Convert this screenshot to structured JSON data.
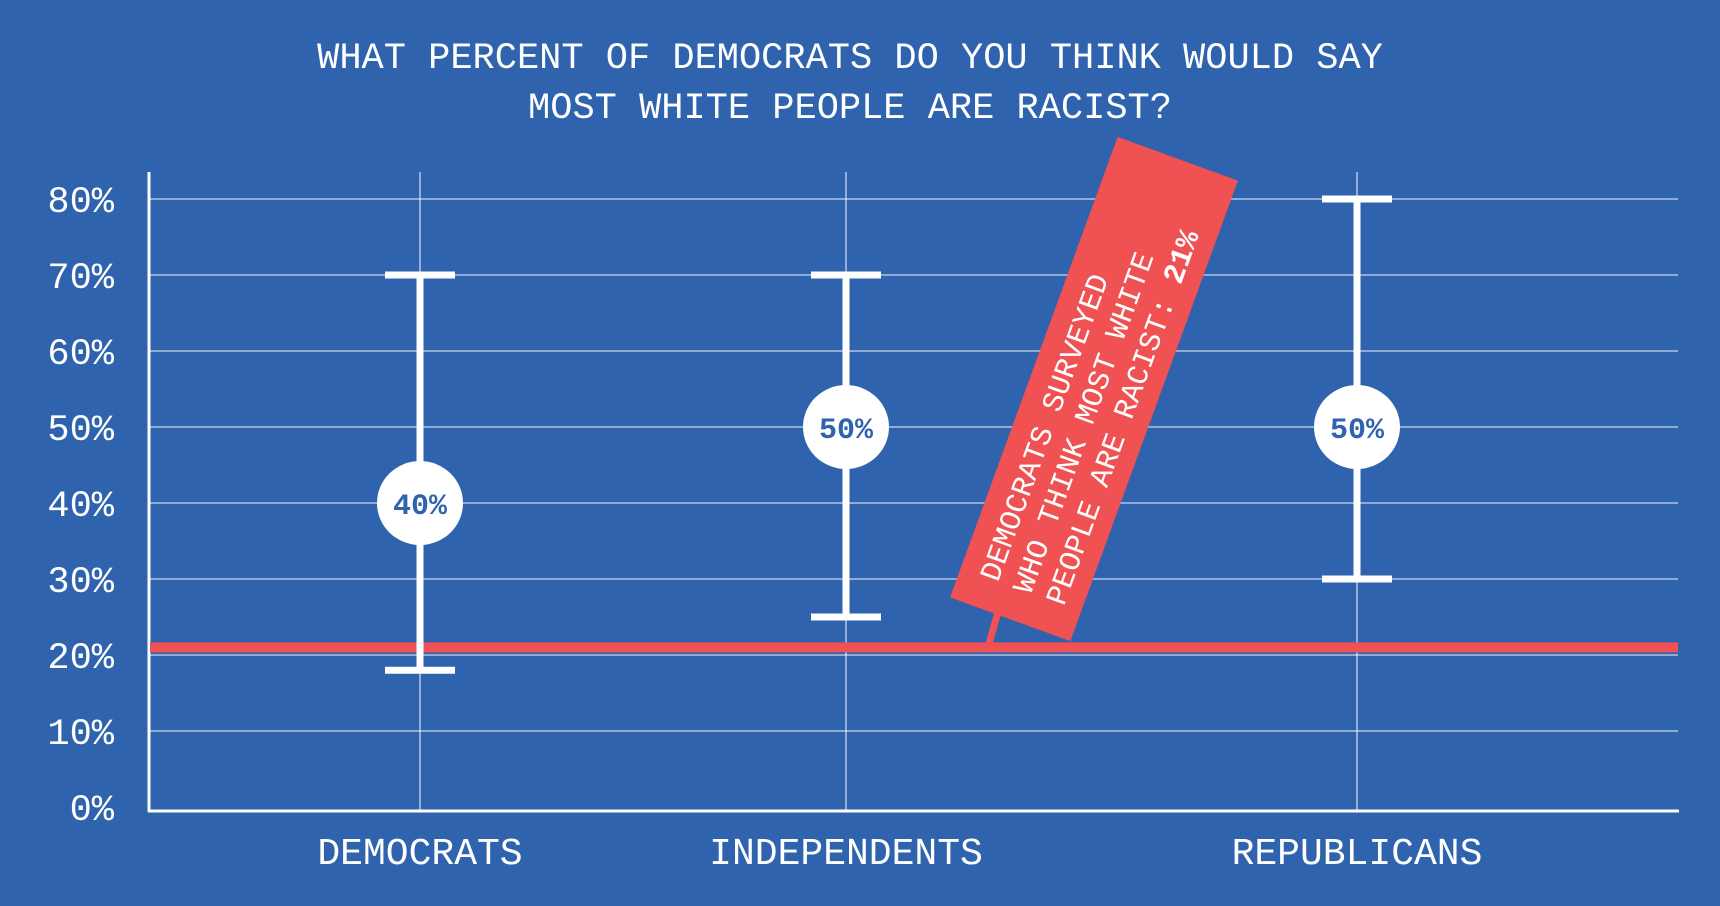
{
  "colors": {
    "background": "#2f63ae",
    "accent": "#f05152",
    "foreground": "#ffffff"
  },
  "chart_data": {
    "type": "error-bar",
    "title": [
      "WHAT PERCENT OF DEMOCRATS DO YOU THINK WOULD SAY",
      "MOST WHITE PEOPLE ARE RACIST?"
    ],
    "categories": [
      "DEMOCRATS",
      "INDEPENDENTS",
      "REPUBLICANS"
    ],
    "series": [
      {
        "center": 40,
        "low": 18,
        "high": 70,
        "label": "40%"
      },
      {
        "center": 50,
        "low": 25,
        "high": 70,
        "label": "50%"
      },
      {
        "center": 50,
        "low": 30,
        "high": 80,
        "label": "50%"
      }
    ],
    "reference_line": {
      "value": 21,
      "label_lines": [
        "DEMOCRATS SURVEYED",
        "WHO THINK MOST WHITE",
        "PEOPLE ARE RACIST: "
      ],
      "label_value": "21%"
    },
    "yticks": [
      "0%",
      "10%",
      "20%",
      "30%",
      "40%",
      "50%",
      "60%",
      "70%",
      "80%"
    ],
    "ylim": [
      0,
      80
    ],
    "grid": true,
    "xlabel": "",
    "ylabel": ""
  }
}
